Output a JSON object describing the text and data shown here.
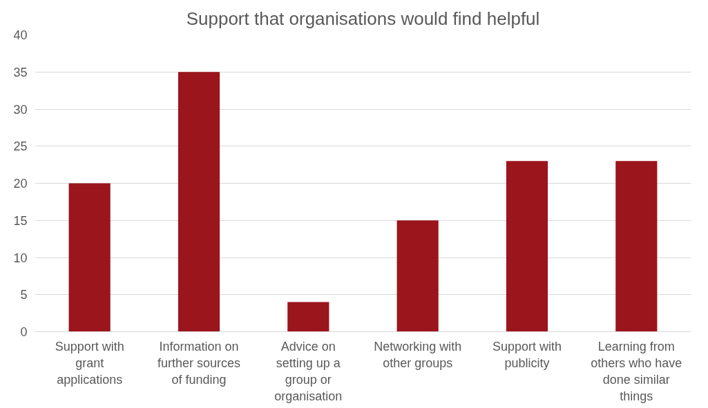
{
  "chart_data": {
    "type": "bar",
    "title": "Support that organisations would find helpful",
    "categories": [
      "Support with grant applications",
      "Information on further sources of funding",
      "Advice on setting up a group or organisation",
      "Networking with other groups",
      "Support with publicity",
      "Learning from others who have done similar things"
    ],
    "values": [
      20,
      35,
      4,
      15,
      23,
      23
    ],
    "color": "#9b151d",
    "ylim": [
      0,
      40
    ],
    "yticks": [
      0,
      5,
      10,
      15,
      20,
      25,
      30,
      35,
      40
    ],
    "grid": "y"
  }
}
